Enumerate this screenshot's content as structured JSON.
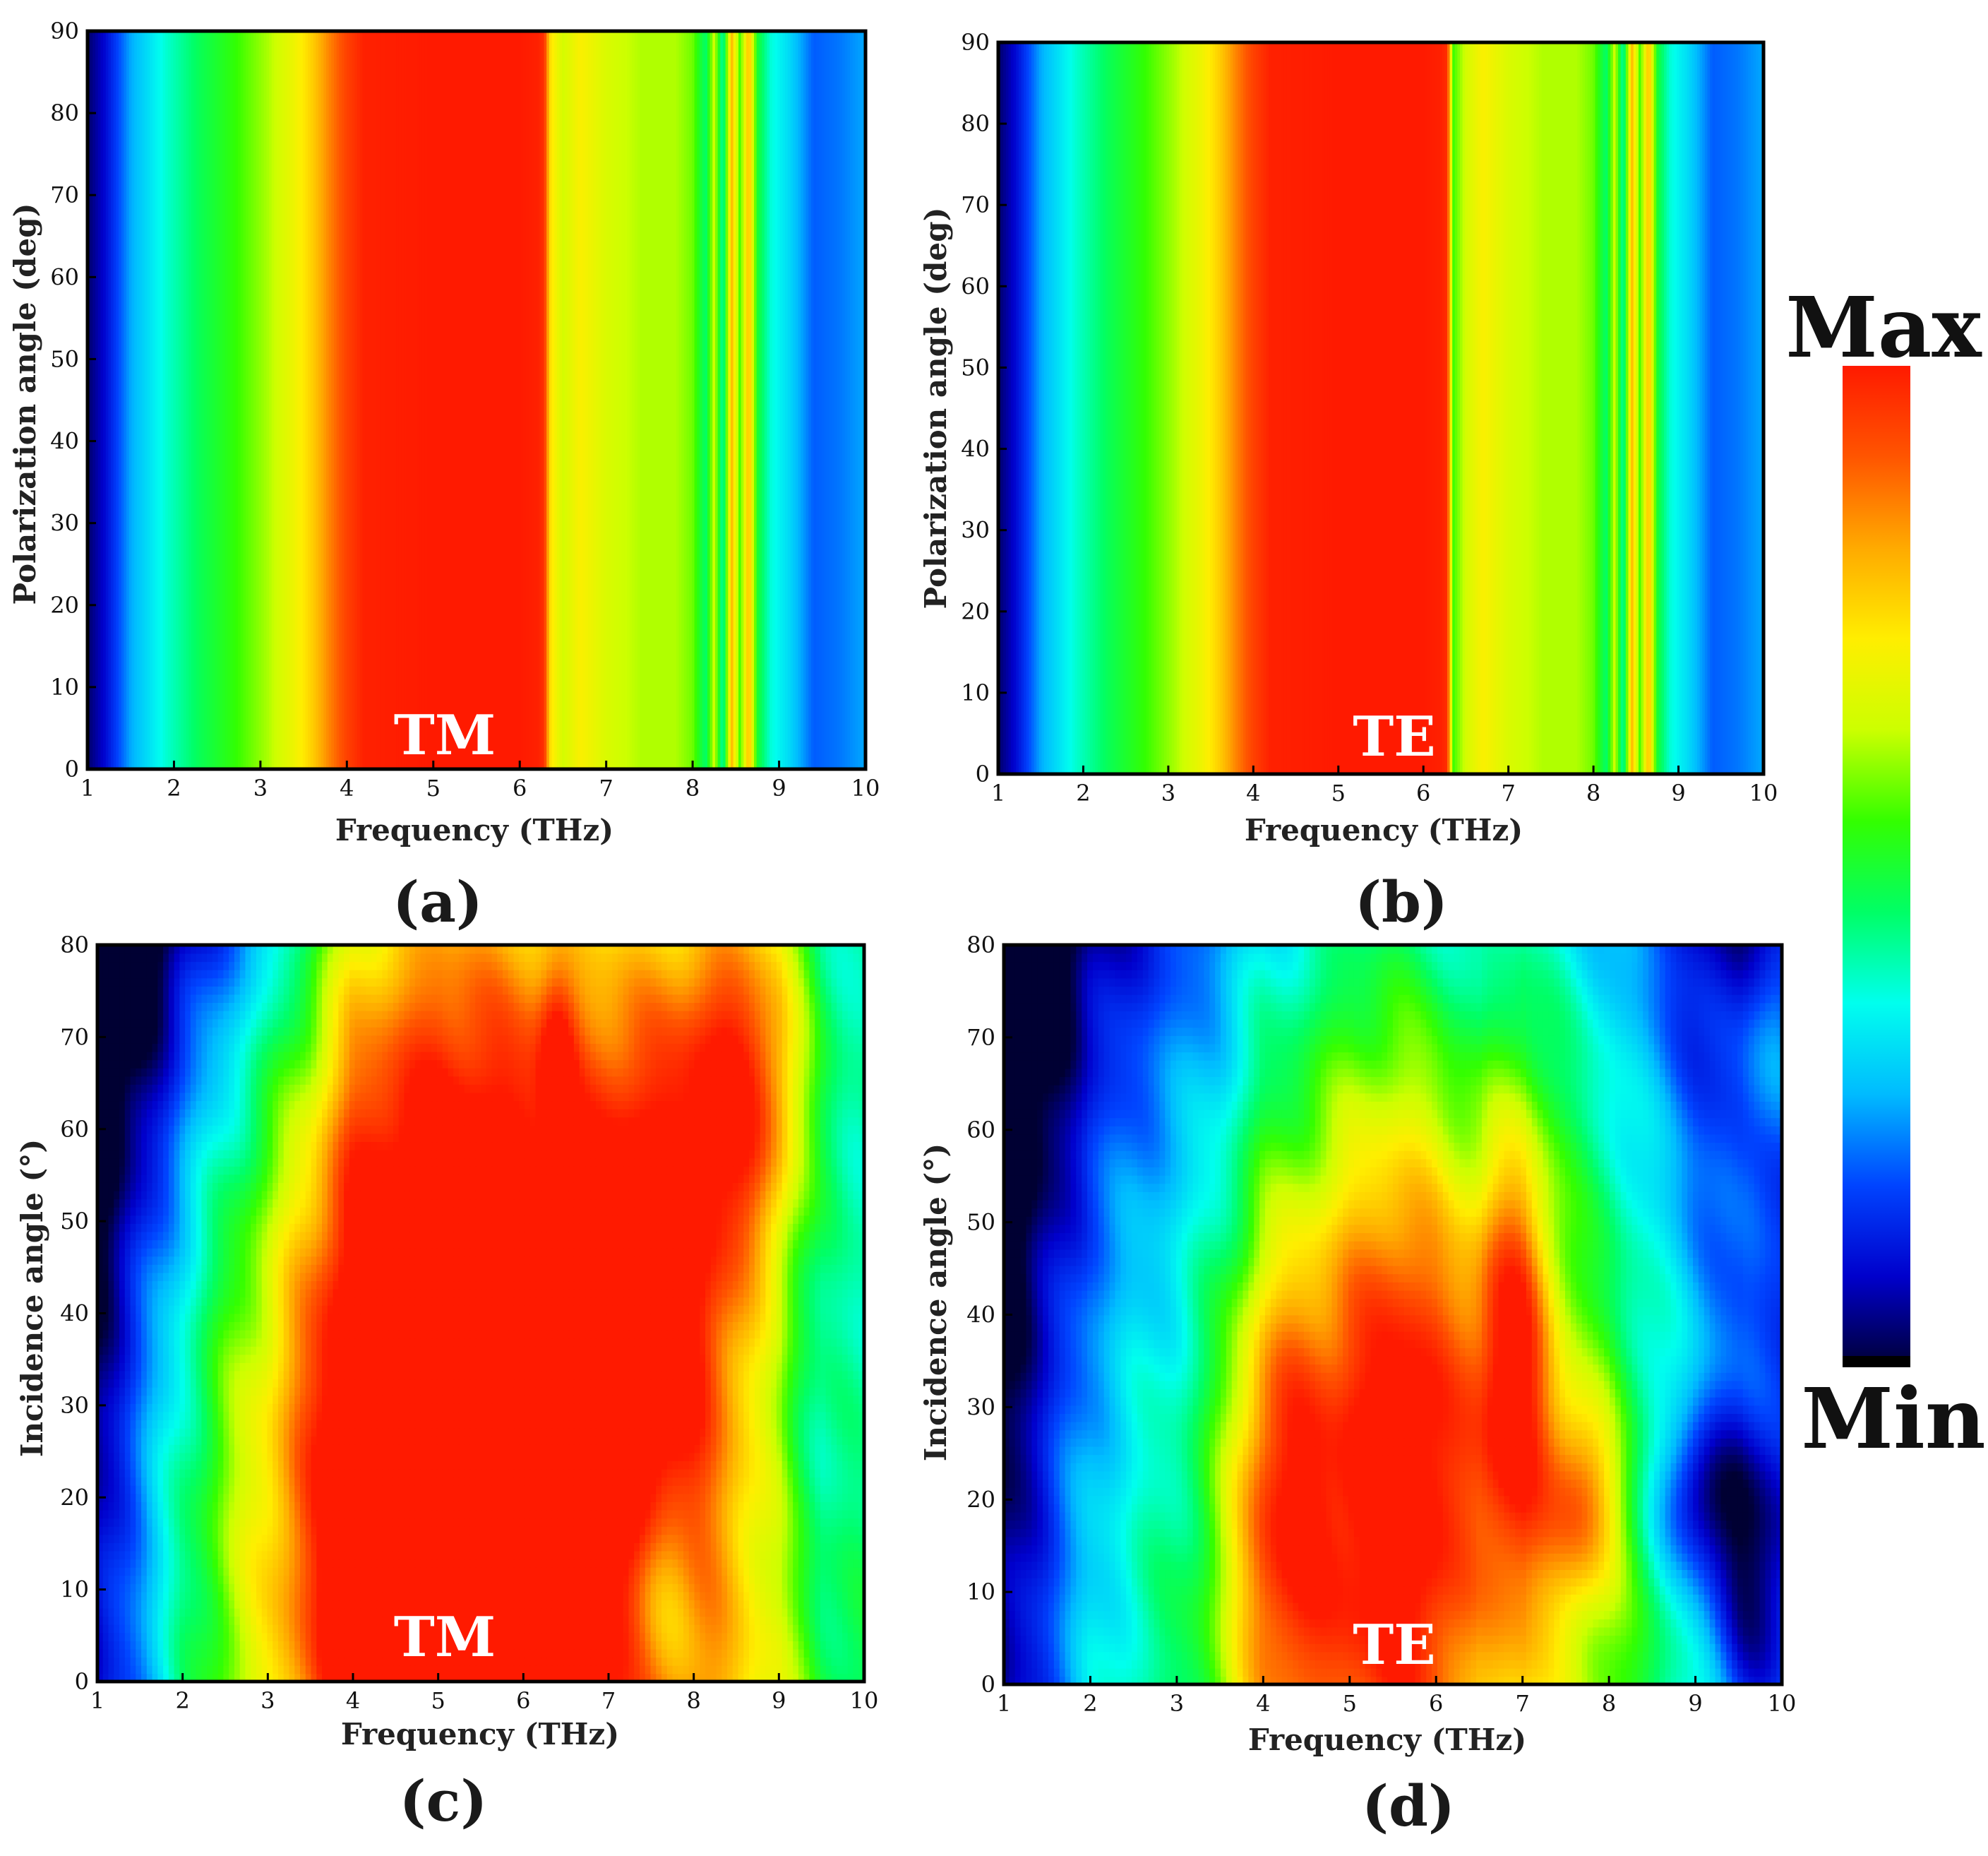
{
  "chart_data": [
    {
      "type": "heatmap",
      "panel": "(a)",
      "mode": "TM",
      "xlabel": "Frequency (THz)",
      "ylabel": "Polarization angle (deg)",
      "xlim": [
        1,
        10
      ],
      "ylim": [
        0,
        90
      ],
      "xticks": [
        "1",
        "2",
        "3",
        "4",
        "5",
        "6",
        "7",
        "8",
        "9",
        "10"
      ],
      "yticks": [
        "0",
        "10",
        "20",
        "30",
        "40",
        "50",
        "60",
        "70",
        "80",
        "90"
      ],
      "profile_x": [
        1.0,
        1.2,
        1.5,
        1.9,
        2.3,
        2.7,
        3.1,
        3.4,
        3.6,
        3.8,
        4.0,
        4.2,
        5.0,
        6.0,
        6.2,
        6.28,
        6.35,
        6.5,
        6.7,
        7.0,
        7.4,
        7.8,
        8.0,
        8.15,
        8.25,
        8.35,
        8.45,
        8.55,
        8.65,
        8.75,
        8.9,
        9.1,
        9.4,
        9.7,
        10.0
      ],
      "profile_v": [
        0.03,
        0.1,
        0.26,
        0.38,
        0.47,
        0.54,
        0.62,
        0.7,
        0.77,
        0.86,
        0.94,
        0.99,
        1.0,
        1.0,
        0.99,
        0.97,
        0.75,
        0.65,
        0.72,
        0.66,
        0.62,
        0.62,
        0.58,
        0.45,
        0.65,
        0.4,
        0.8,
        0.55,
        0.8,
        0.5,
        0.38,
        0.32,
        0.2,
        0.22,
        0.26
      ]
    },
    {
      "type": "heatmap",
      "panel": "(b)",
      "mode": "TE",
      "xlabel": "Frequency (THz)",
      "ylabel": "Polarization angle (deg)",
      "xlim": [
        1,
        10
      ],
      "ylim": [
        0,
        90
      ],
      "xticks": [
        "1",
        "2",
        "3",
        "4",
        "5",
        "6",
        "7",
        "8",
        "9",
        "10"
      ],
      "yticks": [
        "0",
        "10",
        "20",
        "30",
        "40",
        "50",
        "60",
        "70",
        "80",
        "90"
      ],
      "profile_x": [
        1.0,
        1.2,
        1.5,
        1.9,
        2.3,
        2.7,
        3.1,
        3.4,
        3.6,
        3.8,
        4.0,
        4.2,
        5.0,
        6.0,
        6.2,
        6.28,
        6.35,
        6.5,
        6.7,
        7.0,
        7.4,
        7.8,
        8.0,
        8.15,
        8.25,
        8.35,
        8.45,
        8.55,
        8.65,
        8.75,
        8.9,
        9.1,
        9.4,
        9.7,
        10.0
      ],
      "profile_v": [
        0.03,
        0.1,
        0.26,
        0.38,
        0.47,
        0.54,
        0.62,
        0.7,
        0.77,
        0.86,
        0.94,
        0.99,
        1.0,
        1.0,
        0.99,
        0.97,
        0.55,
        0.65,
        0.72,
        0.66,
        0.62,
        0.62,
        0.58,
        0.45,
        0.65,
        0.4,
        0.8,
        0.55,
        0.8,
        0.5,
        0.38,
        0.32,
        0.2,
        0.22,
        0.26
      ]
    },
    {
      "type": "heatmap",
      "panel": "(c)",
      "mode": "TM",
      "xlabel": "Frequency (THz)",
      "ylabel": "Incidence angle (°)",
      "xlim": [
        1,
        10
      ],
      "ylim": [
        0,
        80
      ],
      "xticks": [
        "1",
        "2",
        "3",
        "4",
        "5",
        "6",
        "7",
        "8",
        "9",
        "10"
      ],
      "yticks": [
        "0",
        "10",
        "20",
        "30",
        "40",
        "50",
        "60",
        "70",
        "80"
      ],
      "hotspots": [
        {
          "x": 5.0,
          "y": 25,
          "sx": 1.8,
          "sy": 38,
          "a": 0.5
        },
        {
          "x": 7.5,
          "y": 40,
          "sx": 0.6,
          "sy": 25,
          "a": 0.25
        },
        {
          "x": 8.6,
          "y": 65,
          "sx": 0.5,
          "sy": 14,
          "a": 0.35
        },
        {
          "x": 6.4,
          "y": 68,
          "sx": 0.15,
          "sy": 6,
          "a": 0.2
        },
        {
          "x": 7.6,
          "y": 10,
          "sx": 0.35,
          "sy": 10,
          "a": -0.25
        },
        {
          "x": 9.3,
          "y": 30,
          "sx": 0.6,
          "sy": 25,
          "a": -0.15
        }
      ]
    },
    {
      "type": "heatmap",
      "panel": "(d)",
      "mode": "TE",
      "xlabel": "Frequency (THz)",
      "ylabel": "Incidence angle (°)",
      "xlim": [
        1,
        10
      ],
      "ylim": [
        0,
        80
      ],
      "xticks": [
        "1",
        "2",
        "3",
        "4",
        "5",
        "6",
        "7",
        "8",
        "9",
        "10"
      ],
      "yticks": [
        "0",
        "10",
        "20",
        "30",
        "40",
        "50",
        "60",
        "70",
        "80"
      ],
      "hotspots": [
        {
          "x": 4.2,
          "y": 20,
          "sx": 0.45,
          "sy": 20,
          "a": 0.35
        },
        {
          "x": 5.6,
          "y": 25,
          "sx": 0.7,
          "sy": 28,
          "a": 0.45
        },
        {
          "x": 6.9,
          "y": 35,
          "sx": 0.35,
          "sy": 18,
          "a": 0.4
        },
        {
          "x": 7.7,
          "y": 20,
          "sx": 0.3,
          "sy": 8,
          "a": 0.3
        },
        {
          "x": 9.0,
          "y": 20,
          "sx": 0.35,
          "sy": 6,
          "a": -0.25
        },
        {
          "x": 9.7,
          "y": 12,
          "sx": 0.4,
          "sy": 12,
          "a": -0.25
        },
        {
          "x": 9.9,
          "y": 70,
          "sx": 0.3,
          "sy": 10,
          "a": 0.2
        }
      ]
    }
  ],
  "colorbar": {
    "max_label": "Max",
    "min_label": "Min",
    "colors": [
      "#000033",
      "#0000cc",
      "#0044ff",
      "#00bbff",
      "#00ffee",
      "#00ff66",
      "#33ff00",
      "#ccff00",
      "#ffee00",
      "#ffaa00",
      "#ff5500",
      "#ff1a00"
    ]
  },
  "labels": {
    "panel_a": "(a)",
    "panel_b": "(b)",
    "panel_c": "(c)",
    "panel_d": "(d)",
    "mode_a": "TM",
    "mode_b": "TE",
    "mode_c": "TM",
    "mode_d": "TE",
    "xlabel_a": "Frequency (THz)",
    "xlabel_b": "Frequency (THz)",
    "xlabel_c": "Frequency (THz)",
    "xlabel_d": "Frequency (THz)",
    "ylabel_a": "Polarization angle (deg)",
    "ylabel_b": "Polarization angle (deg)",
    "ylabel_c": "Incidence angle (°)",
    "ylabel_d": "Incidence angle (°)"
  }
}
